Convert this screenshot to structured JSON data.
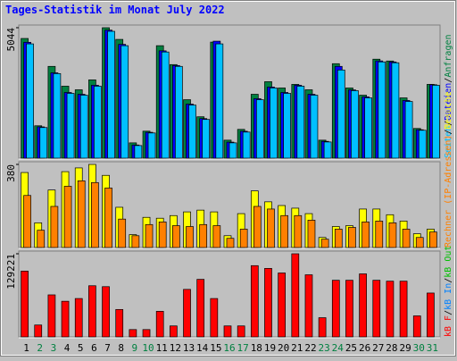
{
  "chart_data": [
    {
      "type": "bar",
      "title": "Tages-Statistik im Monat July 2022",
      "ylim": [
        0,
        5044
      ],
      "yticks": [
        5044
      ],
      "legend_separator": "/",
      "series": [
        {
          "name": "Anfragen",
          "color": "#008040",
          "values": [
            4628,
            1252,
            3549,
            2783,
            2644,
            3027,
            5044,
            4592,
            592,
            1044,
            4349,
            3618,
            2261,
            1600,
            4488,
            696,
            1113,
            2470,
            2957,
            2714,
            2853,
            2644,
            696,
            3653,
            2714,
            2435,
            3827,
            3757,
            2331,
            1148,
            2853
          ]
        },
        {
          "name": "Dateien",
          "color": "#0000ff",
          "values": [
            4480,
            1210,
            3300,
            2540,
            2470,
            2820,
            4950,
            4400,
            510,
            1000,
            4150,
            3580,
            2090,
            1530,
            4523,
            620,
            1040,
            2300,
            2750,
            2540,
            2820,
            2470,
            650,
            3549,
            2640,
            2370,
            3760,
            3720,
            2230,
            1100,
            2840
          ]
        },
        {
          "name": "Seiten",
          "color": "#00c0ff",
          "values": [
            4419,
            1183,
            3270,
            2505,
            2435,
            2783,
            4905,
            4349,
            487,
            974,
            4105,
            3549,
            2053,
            1496,
            4419,
            592,
            1009,
            2261,
            2714,
            2505,
            2783,
            2435,
            626,
            3409,
            2609,
            2331,
            3722,
            3688,
            2192,
            1078,
            2818
          ]
        }
      ]
    },
    {
      "type": "bar",
      "ylim": [
        0,
        380
      ],
      "yticks": [
        380
      ],
      "legend_separator": "/",
      "series": [
        {
          "name": "Besuche",
          "color": "#ffff00",
          "values": [
            343,
            113,
            263,
            347,
            364,
            380,
            330,
            184,
            59,
            138,
            134,
            146,
            163,
            171,
            163,
            54,
            155,
            259,
            209,
            192,
            180,
            155,
            46,
            96,
            100,
            176,
            176,
            150,
            121,
            63,
            84
          ]
        },
        {
          "name": "Rechner (IP-Adressen)",
          "color": "#ff8000",
          "values": [
            238,
            79,
            188,
            280,
            305,
            297,
            272,
            130,
            54,
            105,
            117,
            100,
            96,
            105,
            100,
            42,
            84,
            188,
            176,
            146,
            146,
            125,
            38,
            84,
            92,
            117,
            121,
            113,
            84,
            46,
            71
          ]
        }
      ]
    },
    {
      "type": "bar",
      "ylim": [
        0,
        129221
      ],
      "yticks": [
        129221
      ],
      "legend_separator": "/",
      "legend_names": [
        "kB F",
        "kB In",
        "kB Out"
      ],
      "legend_colors": [
        "#ff0000",
        "#0080ff",
        "#00c000"
      ],
      "series": [
        {
          "name": "kB F",
          "color": "#ff0000",
          "values": [
            102240,
            18460,
            65320,
            55380,
            59640,
            79520,
            78100,
            42600,
            11360,
            11360,
            39760,
            17040,
            73840,
            89460,
            59640,
            17040,
            17040,
            110760,
            106500,
            99400,
            129221,
            96560,
            29820,
            88040,
            88040,
            97980,
            88040,
            86620,
            86620,
            32660,
            68160
          ]
        }
      ],
      "categories": [
        "1",
        "2",
        "3",
        "4",
        "5",
        "6",
        "7",
        "8",
        "9",
        "10",
        "11",
        "12",
        "13",
        "14",
        "15",
        "16",
        "17",
        "18",
        "19",
        "20",
        "21",
        "22",
        "23",
        "24",
        "25",
        "26",
        "27",
        "28",
        "29",
        "30",
        "31"
      ],
      "category_colors": [
        "#000000",
        "#008040",
        "#008040",
        "#000000",
        "#000000",
        "#000000",
        "#000000",
        "#000000",
        "#008040",
        "#008040",
        "#000000",
        "#000000",
        "#000000",
        "#000000",
        "#000000",
        "#008040",
        "#008040",
        "#000000",
        "#000000",
        "#000000",
        "#000000",
        "#000000",
        "#008040",
        "#008040",
        "#000000",
        "#000000",
        "#000000",
        "#000000",
        "#000000",
        "#008040",
        "#008040"
      ]
    }
  ]
}
